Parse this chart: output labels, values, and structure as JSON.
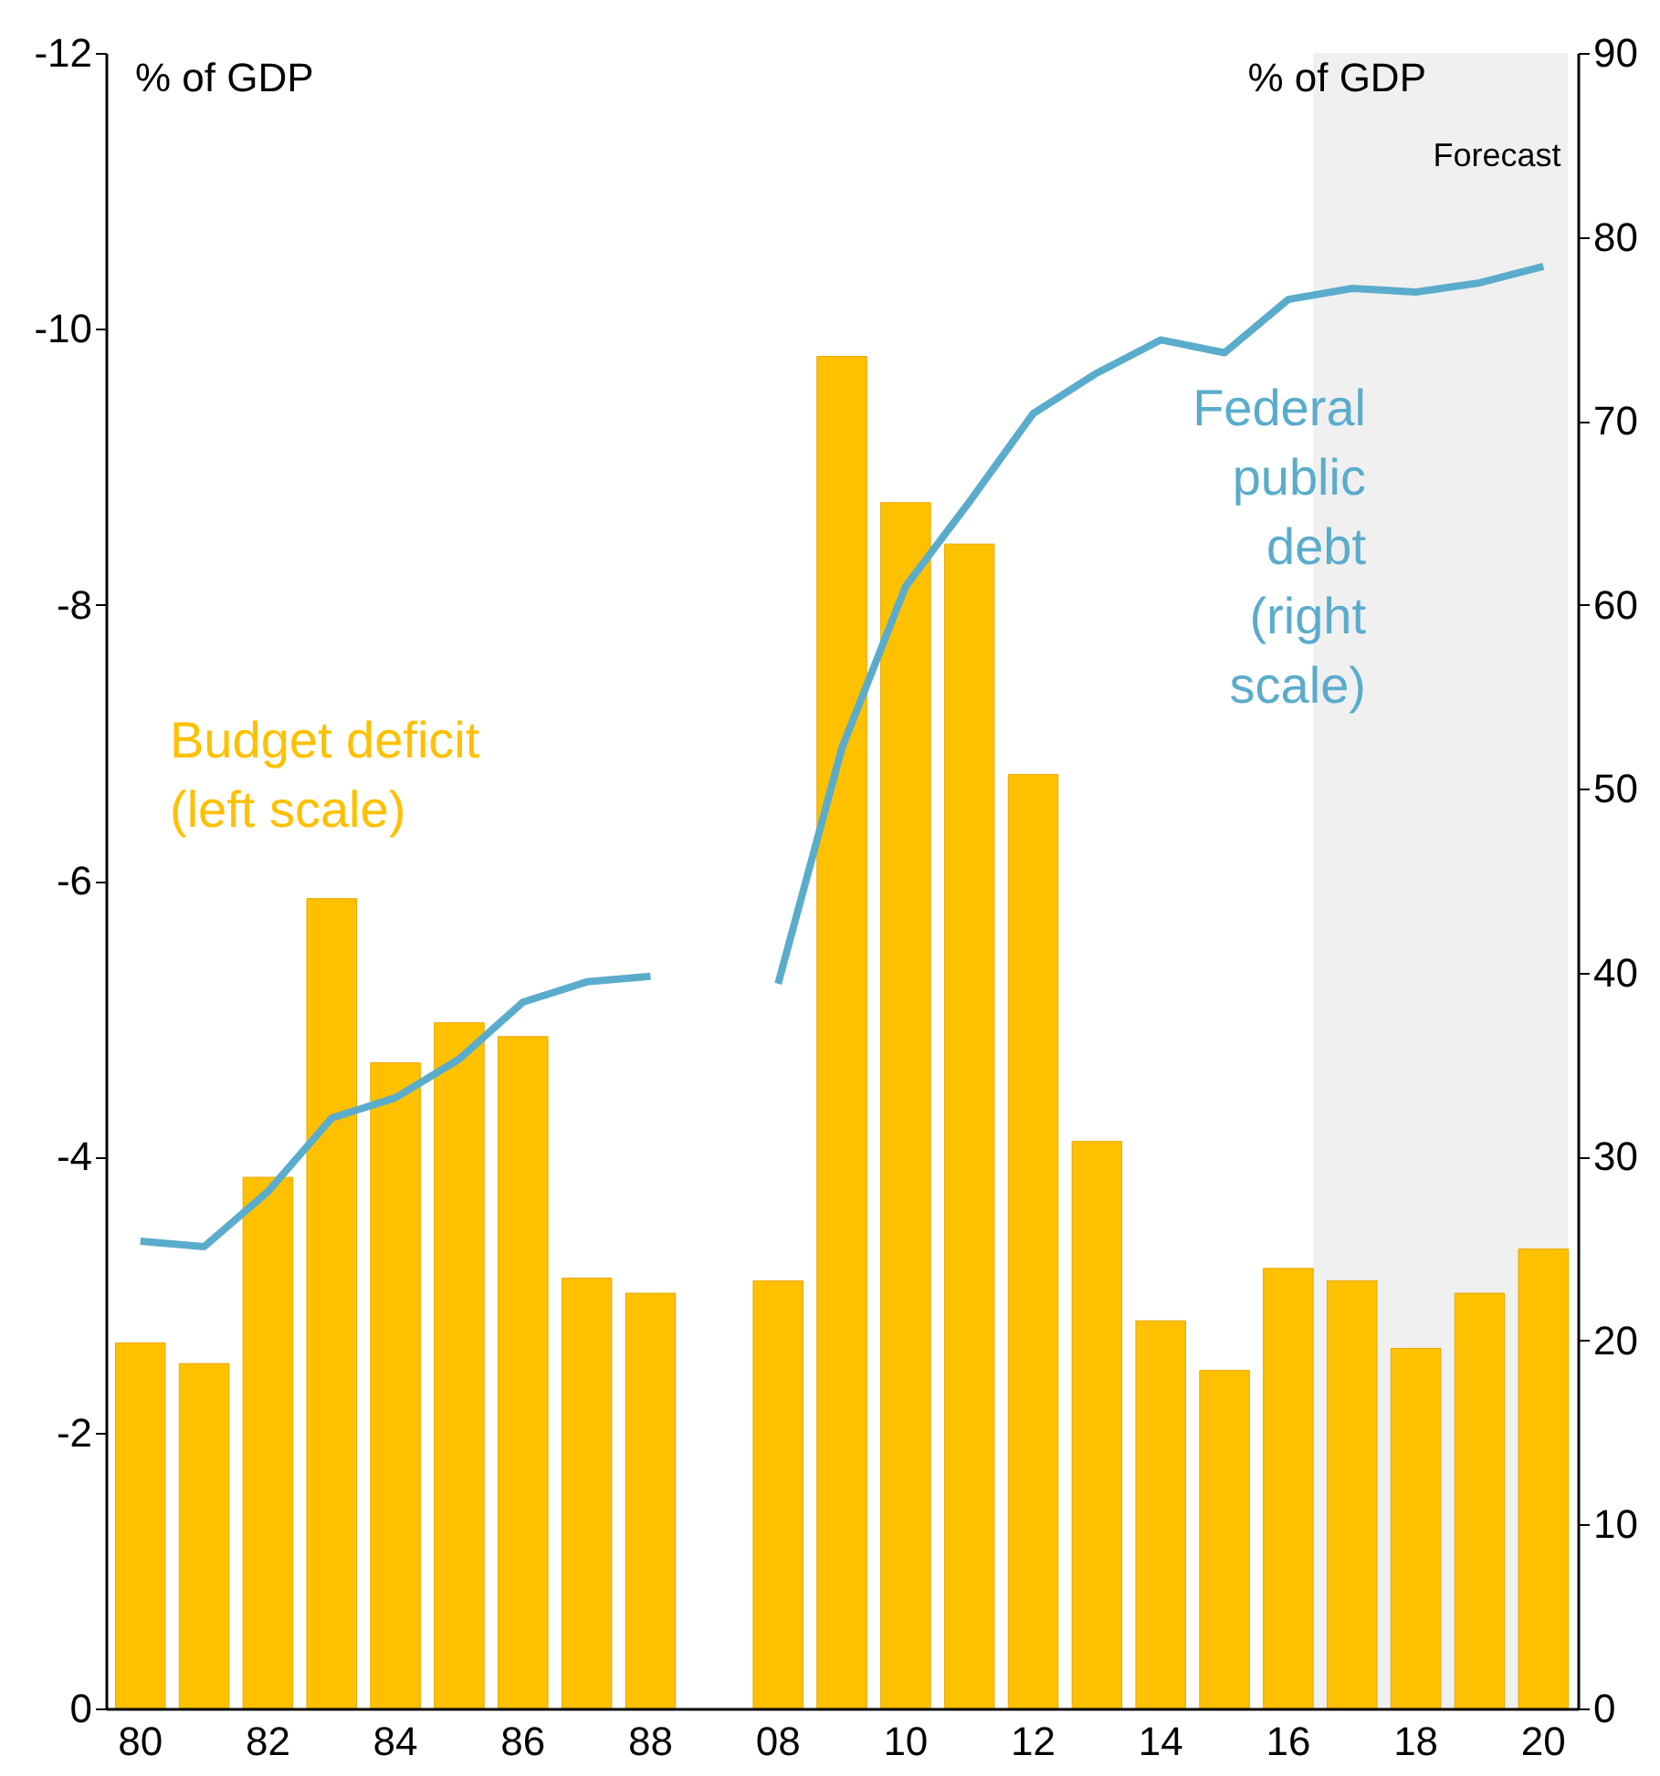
{
  "chart_data": {
    "type": "bar",
    "ylabel": "% of GDP",
    "y2label": "% of GDP",
    "categories": [
      "80",
      null,
      "82",
      null,
      "84",
      null,
      "86",
      null,
      "88",
      null,
      "08",
      null,
      "10",
      null,
      "12",
      null,
      "14",
      null,
      "16",
      null,
      "18",
      null,
      "20"
    ],
    "series": [
      {
        "name": "Budget deficit (left scale)",
        "color": "#ffc000",
        "values": [
          -2.65,
          -2.5,
          -3.85,
          -5.87,
          -4.68,
          -4.97,
          -4.87,
          -3.12,
          -3.01,
          null,
          -3.1,
          -9.8,
          -8.74,
          -8.44,
          -6.77,
          -4.11,
          -2.81,
          -2.45,
          -3.19,
          -3.1,
          -2.61,
          -3.01,
          -3.33
        ]
      },
      {
        "name": "Federal public debt (right scale)",
        "type": "line",
        "axis": "y2",
        "color": "#5aaccc",
        "values": [
          25.4,
          25.1,
          28.1,
          32.1,
          33.2,
          35.3,
          38.4,
          39.5,
          39.8,
          null,
          39.4,
          52.2,
          61,
          65.6,
          70.4,
          72.6,
          74.4,
          73.7,
          76.6,
          77.2,
          77,
          77.5,
          78.4
        ]
      }
    ],
    "ylim": [
      0,
      -12
    ],
    "yticks": [
      -12,
      -10,
      -8,
      -6,
      -4,
      -2,
      0
    ],
    "y2lim": [
      0,
      90
    ],
    "y2ticks": [
      0,
      10,
      20,
      30,
      40,
      50,
      60,
      70,
      80,
      90
    ],
    "bands": [
      {
        "axis": "x",
        "from": "16",
        "to": "20",
        "label": "Forecast",
        "color": "#f0f0f0"
      }
    ],
    "grid": false
  }
}
